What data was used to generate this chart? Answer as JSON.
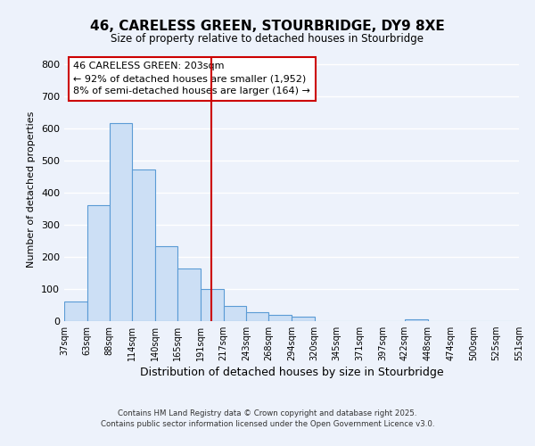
{
  "title": "46, CARELESS GREEN, STOURBRIDGE, DY9 8XE",
  "subtitle": "Size of property relative to detached houses in Stourbridge",
  "xlabel": "Distribution of detached houses by size in Stourbridge",
  "ylabel": "Number of detached properties",
  "bin_edges": [
    37,
    63,
    88,
    114,
    140,
    165,
    191,
    217,
    243,
    268,
    294,
    320,
    345,
    371,
    397,
    422,
    448,
    474,
    500,
    525,
    551
  ],
  "bar_heights": [
    60,
    360,
    618,
    473,
    234,
    163,
    100,
    48,
    27,
    20,
    14,
    0,
    0,
    0,
    0,
    5,
    0,
    0,
    0,
    0
  ],
  "bar_color": "#ccdff5",
  "bar_edgecolor": "#5b9bd5",
  "bg_color": "#edf2fb",
  "grid_color": "#ffffff",
  "vline_x": 203,
  "vline_color": "#cc0000",
  "annotation_box_text": "46 CARELESS GREEN: 203sqm\n← 92% of detached houses are smaller (1,952)\n8% of semi-detached houses are larger (164) →",
  "ylim": [
    0,
    820
  ],
  "yticks": [
    0,
    100,
    200,
    300,
    400,
    500,
    600,
    700,
    800
  ],
  "footer_line1": "Contains HM Land Registry data © Crown copyright and database right 2025.",
  "footer_line2": "Contains public sector information licensed under the Open Government Licence v3.0."
}
